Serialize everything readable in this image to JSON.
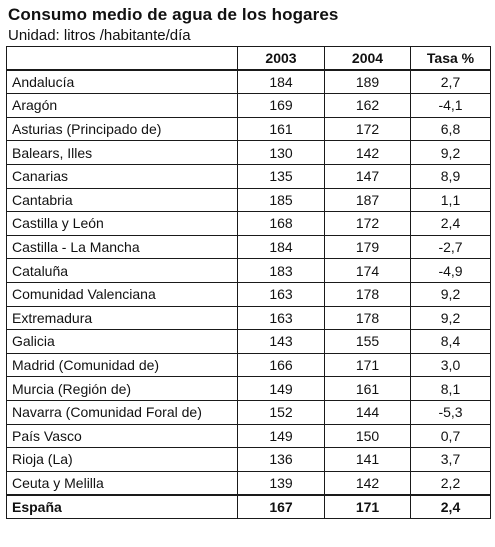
{
  "title": "Consumo medio de agua de los hogares",
  "subtitle": "Unidad: litros /habitante/día",
  "table": {
    "columns": [
      "",
      "2003",
      "2004",
      "Tasa %"
    ],
    "rows": [
      {
        "name": "Andalucía",
        "y2003": "184",
        "y2004": "189",
        "rate": "2,7"
      },
      {
        "name": "Aragón",
        "y2003": "169",
        "y2004": "162",
        "rate": "-4,1"
      },
      {
        "name": "Asturias (Principado de)",
        "y2003": "161",
        "y2004": "172",
        "rate": "6,8"
      },
      {
        "name": "Balears, Illes",
        "y2003": "130",
        "y2004": "142",
        "rate": "9,2"
      },
      {
        "name": "Canarias",
        "y2003": "135",
        "y2004": "147",
        "rate": "8,9"
      },
      {
        "name": "Cantabria",
        "y2003": "185",
        "y2004": "187",
        "rate": "1,1"
      },
      {
        "name": "Castilla y León",
        "y2003": "168",
        "y2004": "172",
        "rate": "2,4"
      },
      {
        "name": "Castilla - La Mancha",
        "y2003": "184",
        "y2004": "179",
        "rate": "-2,7"
      },
      {
        "name": "Cataluña",
        "y2003": "183",
        "y2004": "174",
        "rate": "-4,9"
      },
      {
        "name": "Comunidad Valenciana",
        "y2003": "163",
        "y2004": "178",
        "rate": "9,2"
      },
      {
        "name": "Extremadura",
        "y2003": "163",
        "y2004": "178",
        "rate": "9,2"
      },
      {
        "name": "Galicia",
        "y2003": "143",
        "y2004": "155",
        "rate": "8,4"
      },
      {
        "name": "Madrid (Comunidad de)",
        "y2003": "166",
        "y2004": "171",
        "rate": "3,0"
      },
      {
        "name": "Murcia (Región de)",
        "y2003": "149",
        "y2004": "161",
        "rate": "8,1"
      },
      {
        "name": "Navarra (Comunidad Foral de)",
        "y2003": "152",
        "y2004": "144",
        "rate": "-5,3"
      },
      {
        "name": "País Vasco",
        "y2003": "149",
        "y2004": "150",
        "rate": "0,7"
      },
      {
        "name": "Rioja (La)",
        "y2003": "136",
        "y2004": "141",
        "rate": "3,7"
      },
      {
        "name": "Ceuta y Melilla",
        "y2003": "139",
        "y2004": "142",
        "rate": "2,2"
      }
    ],
    "total": {
      "name": "España",
      "y2003": "167",
      "y2004": "171",
      "rate": "2,4"
    }
  }
}
